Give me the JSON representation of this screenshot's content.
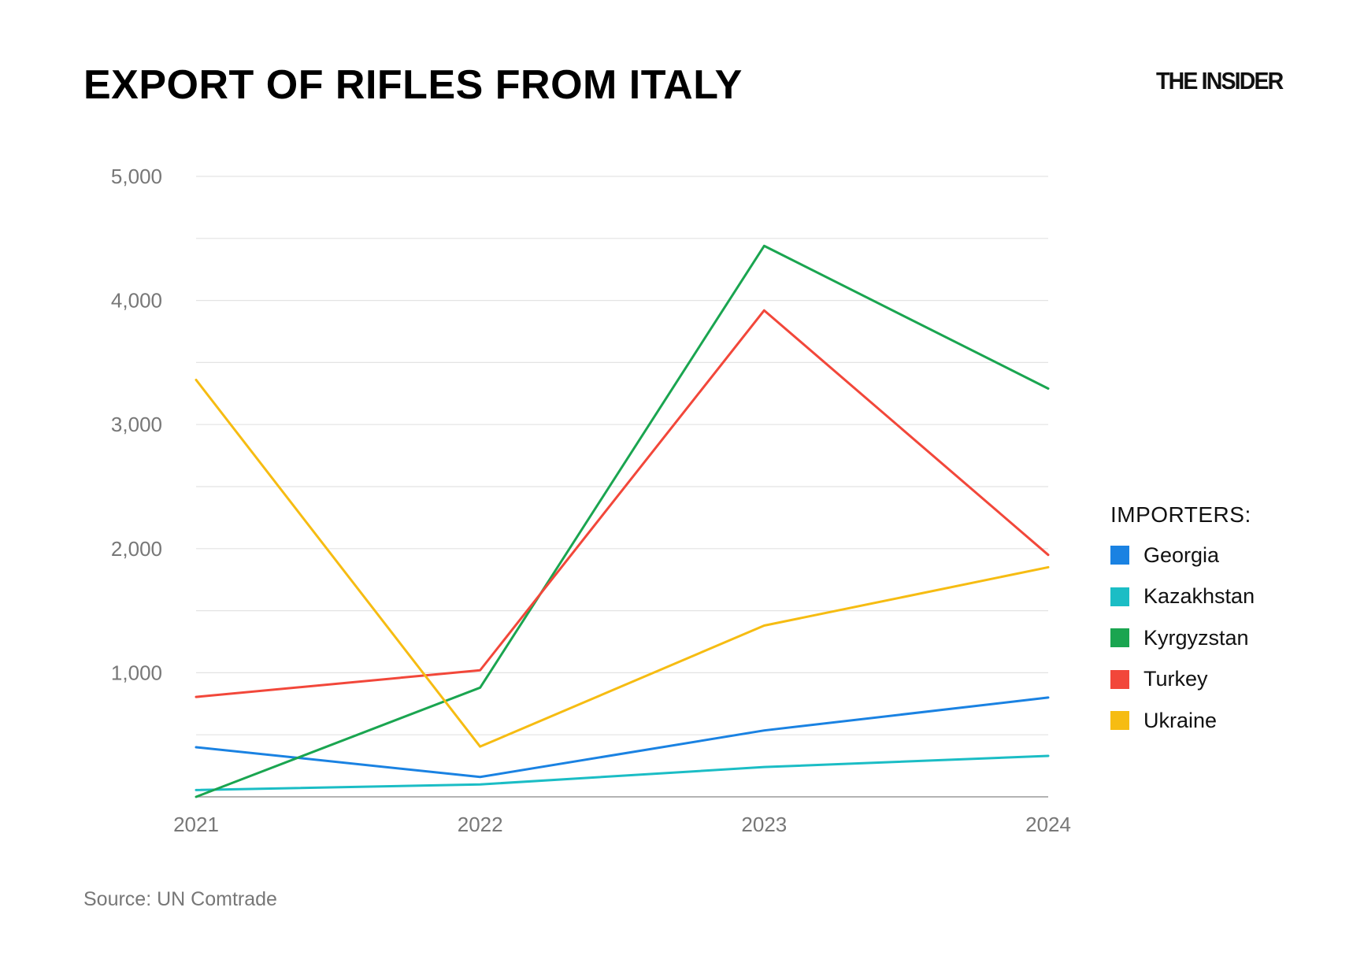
{
  "header": {
    "title": "EXPORT OF RIFLES FROM ITALY",
    "brand": "THE INSIDER"
  },
  "footer": {
    "source": "Source: UN Comtrade"
  },
  "legend": {
    "title": "IMPORTERS:"
  },
  "chart_data": {
    "type": "line",
    "title": "EXPORT OF RIFLES FROM ITALY",
    "xlabel": "",
    "ylabel": "",
    "x": [
      "2021",
      "2022",
      "2023",
      "2024"
    ],
    "ylim": [
      0,
      5000
    ],
    "yticks": [
      1000,
      2000,
      3000,
      4000,
      5000
    ],
    "ytick_labels": [
      "1,000",
      "2,000",
      "3,000",
      "4,000",
      "5,000"
    ],
    "grid": true,
    "legend_position": "right",
    "series": [
      {
        "name": "Georgia",
        "color": "#1a82e2",
        "values": [
          400,
          160,
          535,
          800
        ]
      },
      {
        "name": "Kazakhstan",
        "color": "#1bbdc5",
        "values": [
          55,
          100,
          240,
          330
        ]
      },
      {
        "name": "Kyrgyzstan",
        "color": "#1aa550",
        "values": [
          0,
          880,
          4440,
          3290
        ]
      },
      {
        "name": "Turkey",
        "color": "#f2473a",
        "values": [
          805,
          1020,
          3920,
          1950
        ]
      },
      {
        "name": "Ukraine",
        "color": "#f6bc12",
        "values": [
          3360,
          405,
          1380,
          1850
        ]
      }
    ]
  }
}
